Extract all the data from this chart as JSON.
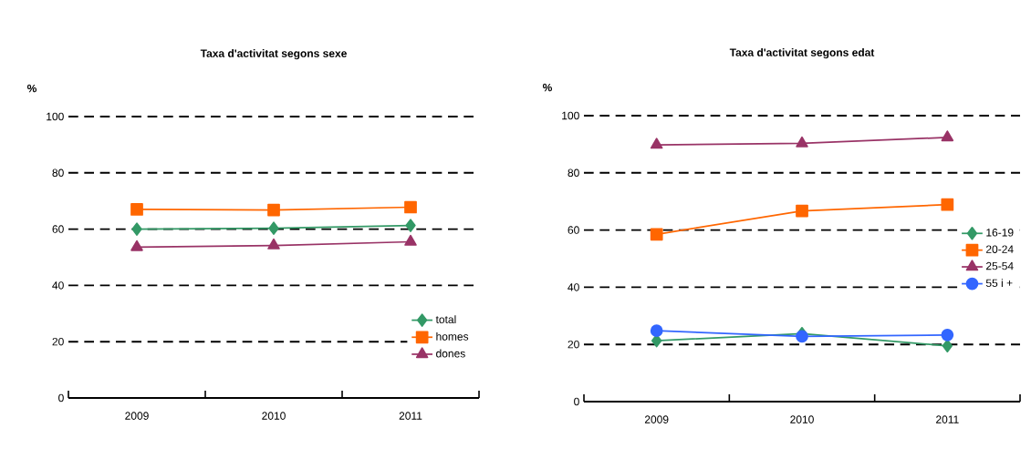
{
  "chart_data": [
    {
      "type": "line",
      "title": "Taxa d'activitat segons sexe",
      "ylabel": "%",
      "categories": [
        "2009",
        "2010",
        "2011"
      ],
      "series": [
        {
          "name": "total",
          "color": "#339966",
          "marker": "diamond",
          "values": [
            60.0,
            60.3,
            61.3
          ]
        },
        {
          "name": "homes",
          "color": "#ff6600",
          "marker": "square",
          "values": [
            67.0,
            66.8,
            67.8
          ]
        },
        {
          "name": "dones",
          "color": "#993366",
          "marker": "triangle",
          "values": [
            53.6,
            54.2,
            55.5
          ]
        }
      ],
      "ylim": [
        0,
        100
      ],
      "yticks": [
        0,
        20,
        40,
        60,
        80,
        100
      ],
      "grid": "y",
      "legend": "bottom right"
    },
    {
      "type": "line",
      "title": "Taxa d'activitat segons edat",
      "ylabel": "%",
      "categories": [
        "2009",
        "2010",
        "2011"
      ],
      "series": [
        {
          "name": "16-19",
          "color": "#339966",
          "marker": "diamond",
          "values": [
            21.3,
            23.8,
            19.5
          ]
        },
        {
          "name": "20-24",
          "color": "#ff6600",
          "marker": "square",
          "values": [
            58.5,
            66.7,
            68.9
          ]
        },
        {
          "name": "25-54",
          "color": "#993366",
          "marker": "triangle",
          "values": [
            89.8,
            90.3,
            92.4
          ]
        },
        {
          "name": "55 i +",
          "color": "#3366ff",
          "marker": "circle",
          "values": [
            24.8,
            22.8,
            23.3
          ]
        }
      ],
      "ylim": [
        0,
        100
      ],
      "yticks": [
        0,
        20,
        40,
        60,
        80,
        100
      ],
      "grid": "y",
      "legend": "right"
    }
  ]
}
